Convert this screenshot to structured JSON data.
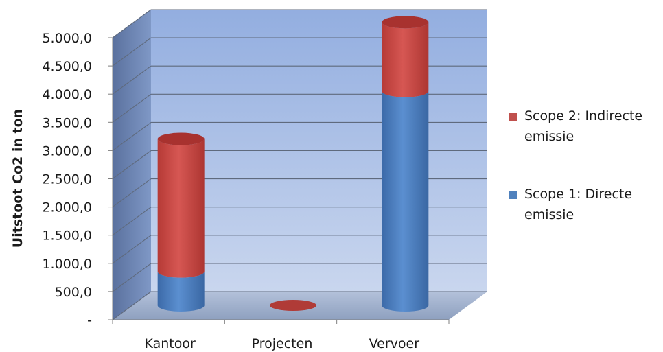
{
  "chart_data": {
    "type": "bar",
    "stacked": true,
    "three_d": true,
    "categories": [
      "Kantoor",
      "Projecten",
      "Vervoer"
    ],
    "series": [
      {
        "name": "Scope 1: Directe emissie",
        "color": "#4f81bd",
        "values": [
          600,
          0,
          3800
        ]
      },
      {
        "name": "Scope 2:  Indirecte emissie",
        "color": "#c0504d",
        "values": [
          2350,
          0,
          1220
        ]
      }
    ],
    "ylabel": "Uitstoot Co2 in ton",
    "xlabel": "",
    "ylim": [
      0,
      5000
    ],
    "yticks": [
      "-",
      "500,0",
      "1.000,0",
      "1.500,0",
      "2.000,0",
      "2.500,0",
      "3.000,0",
      "3.500,0",
      "4.000,0",
      "4.500,0",
      "5.000,0"
    ],
    "grid": true,
    "legend_position": "right",
    "legend_order": [
      "Scope 2:  Indirecte emissie",
      "Scope 1: Directe emissie"
    ],
    "colors": {
      "back_wall": "#9fb7e0",
      "side_wall": "#6d86b5",
      "floor": "#a3b4cf"
    }
  }
}
